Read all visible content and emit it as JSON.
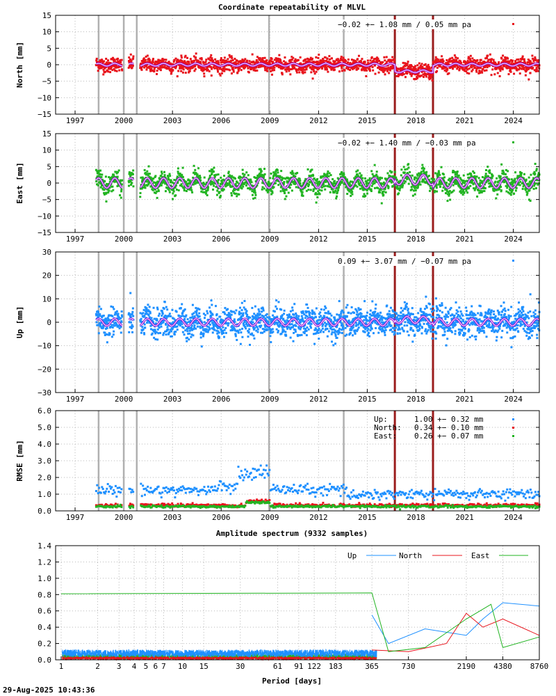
{
  "title": "Coordinate repeatability of MLVL",
  "timestamp": "29-Aug-2025 10:43:36",
  "colors": {
    "north": "#e8141c",
    "east": "#22b422",
    "up": "#1e90ff",
    "model": "#9400d3",
    "vgray": "#b0b0b0",
    "vred": "#9b1c1c"
  },
  "chart_data": [
    {
      "type": "scatter",
      "name": "North",
      "title": "Coordinate repeatability of MLVL",
      "ylabel": "North [mm]",
      "ylim": [
        -15,
        15
      ],
      "yticks": [
        "15",
        "10",
        "5",
        "0",
        "−5",
        "−10",
        "−15"
      ],
      "xlim": [
        1995.8,
        2025.6
      ],
      "xticks": [
        "1997",
        "2000",
        "2003",
        "2006",
        "2009",
        "2012",
        "2015",
        "2018",
        "2021",
        "2024"
      ],
      "legend": "−0.02 +− 1.08 mm /  0.05 mm pa",
      "spread": 1.08,
      "annual_amplitude": 0.4,
      "offset_2016_2019": -2.0,
      "data_start": 1998.3,
      "data_end": 2025.6,
      "gaps": [
        [
          1999.9,
          2000.3
        ],
        [
          2000.6,
          2001.0
        ]
      ]
    },
    {
      "type": "scatter",
      "name": "East",
      "ylabel": "East [mm]",
      "ylim": [
        -15,
        15
      ],
      "yticks": [
        "15",
        "10",
        "5",
        "0",
        "−5",
        "−10",
        "−15"
      ],
      "xlim": [
        1995.8,
        2025.6
      ],
      "xticks": [
        "1997",
        "2000",
        "2003",
        "2006",
        "2009",
        "2012",
        "2015",
        "2018",
        "2021",
        "2024"
      ],
      "legend": "−0.02 +− 1.40 mm / −0.03 mm pa",
      "spread": 1.4,
      "annual_amplitude": 1.5,
      "offset_2016_2019": 1.0,
      "data_start": 1998.3,
      "data_end": 2025.6
    },
    {
      "type": "scatter",
      "name": "Up",
      "ylabel": "Up [mm]",
      "ylim": [
        -30,
        30
      ],
      "yticks": [
        "30",
        "20",
        "10",
        "0",
        "−10",
        "−20",
        "−30"
      ],
      "xlim": [
        1995.8,
        2025.6
      ],
      "xticks": [
        "1997",
        "2000",
        "2003",
        "2006",
        "2009",
        "2012",
        "2015",
        "2018",
        "2021",
        "2024"
      ],
      "legend": " 0.09 +− 3.07 mm / −0.07 mm pa",
      "spread": 3.07,
      "annual_amplitude": 1.5,
      "offset_2016_2019": 1.0,
      "data_start": 1998.3,
      "data_end": 2025.6
    },
    {
      "type": "scatter",
      "name": "RMSE",
      "ylabel": "RMSE [mm]",
      "ylim": [
        0,
        6
      ],
      "yticks": [
        "6.0",
        "5.0",
        "4.0",
        "3.0",
        "2.0",
        "1.0",
        "0.0"
      ],
      "xlim": [
        1995.8,
        2025.6
      ],
      "xticks": [
        "1997",
        "2000",
        "2003",
        "2006",
        "2009",
        "2012",
        "2015",
        "2018",
        "2021",
        "2024"
      ],
      "series": [
        {
          "name": "Up",
          "mean": 1.0,
          "sd": 0.32,
          "legend_label": "Up:",
          "legend_value": "1.00 +− 0.32 mm"
        },
        {
          "name": "North",
          "mean": 0.34,
          "sd": 0.1,
          "legend_label": "North:",
          "legend_value": "0.34 +− 0.10 mm"
        },
        {
          "name": "East",
          "mean": 0.26,
          "sd": 0.07,
          "legend_label": "East:",
          "legend_value": "0.26 +− 0.07 mm"
        }
      ]
    },
    {
      "type": "line",
      "name": "Amplitude spectrum",
      "title": "Amplitude spectrum (9332 samples)",
      "xlabel": "Period [days]",
      "xscale": "log",
      "xlim": [
        0.9,
        8760
      ],
      "xticks": [
        "1",
        "2",
        "3",
        "4",
        "5",
        "6",
        "7",
        "10",
        "15",
        "30",
        "61",
        "91",
        "122",
        "183",
        "365",
        "730",
        "2190",
        "4380",
        "8760"
      ],
      "xtick_values": [
        1,
        2,
        3,
        4,
        5,
        6,
        7,
        10,
        15,
        30,
        61,
        91,
        122,
        183,
        365,
        730,
        2190,
        4380,
        8760
      ],
      "ylim": [
        0,
        1.4
      ],
      "yticks": [
        "1.4",
        "1.2",
        "1.0",
        "0.8",
        "0.6",
        "0.4",
        "0.2",
        "0.0"
      ],
      "legend": [
        "Up",
        "North",
        "East"
      ],
      "series": [
        {
          "name": "Up",
          "points": [
            [
              365,
              0.55
            ],
            [
              500,
              0.2
            ],
            [
              1000,
              0.38
            ],
            [
              2190,
              0.3
            ],
            [
              3000,
              0.5
            ],
            [
              4380,
              0.7
            ],
            [
              8760,
              0.66
            ]
          ]
        },
        {
          "name": "North",
          "points": [
            [
              365,
              0.12
            ],
            [
              730,
              0.1
            ],
            [
              1500,
              0.2
            ],
            [
              2190,
              0.57
            ],
            [
              3000,
              0.4
            ],
            [
              4380,
              0.5
            ],
            [
              8760,
              0.3
            ]
          ]
        },
        {
          "name": "East",
          "points": [
            [
              1,
              0.81
            ],
            [
              365,
              0.82
            ],
            [
              500,
              0.1
            ],
            [
              1000,
              0.15
            ],
            [
              2190,
              0.5
            ],
            [
              3500,
              0.68
            ],
            [
              4380,
              0.15
            ],
            [
              8760,
              0.28
            ]
          ]
        }
      ]
    }
  ],
  "vertical_markers": {
    "gray": [
      1998.45,
      2000.0,
      2000.8,
      2008.95,
      2013.55
    ],
    "red": [
      2016.7,
      2019.05
    ]
  }
}
